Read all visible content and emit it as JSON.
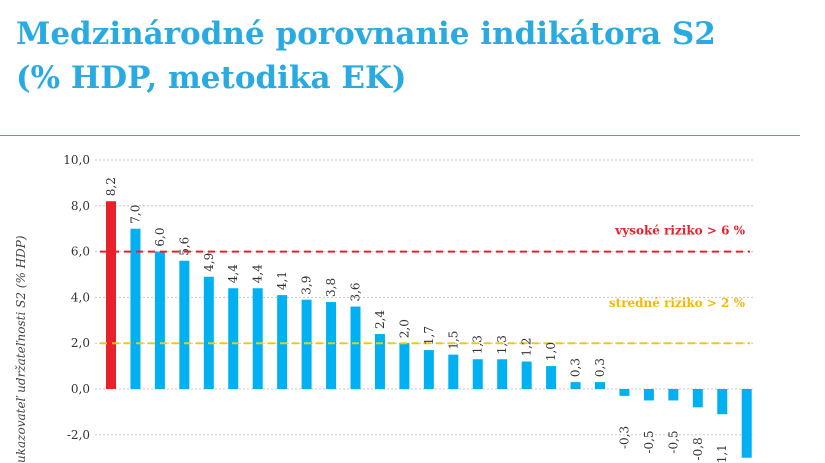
{
  "slide": {
    "title_line1": "Medzinárodné porovnanie indikátora S2",
    "title_line2": "(% HDP, metodika EK)"
  },
  "chart_data": {
    "type": "bar",
    "title": "Medzinárodné porovnanie indikátora S2 (% HDP, metodika EK)",
    "ylabel": "ukazovateľ udržateľnosti S2 (% HDP)",
    "xlabel": "",
    "ylim": [
      -3.0,
      10.0
    ],
    "yticks": [
      "10,0",
      "8,0",
      "6,0",
      "4,0",
      "2,0",
      "0,0",
      "-2,0"
    ],
    "ytick_values": [
      10,
      8,
      6,
      4,
      2,
      0,
      -2
    ],
    "grid": true,
    "values": [
      8.2,
      7.0,
      6.0,
      5.6,
      4.9,
      4.4,
      4.4,
      4.1,
      3.9,
      3.8,
      3.6,
      2.4,
      2.0,
      1.7,
      1.5,
      1.3,
      1.3,
      1.2,
      1.0,
      0.3,
      0.3,
      -0.3,
      -0.5,
      -0.5,
      -0.8,
      -1.1,
      -3.0
    ],
    "labels": [
      "8,2",
      "7,0",
      "6,0",
      "5,6",
      "4,9",
      "4,4",
      "4,4",
      "4,1",
      "3,9",
      "3,8",
      "3,6",
      "2,4",
      "2,0",
      "1,7",
      "1,5",
      "1,3",
      "1,3",
      "1,2",
      "1,0",
      "0,3",
      "0,3",
      "-0,3",
      "-0,5",
      "-0,5",
      "-0,8",
      "-1,1",
      ""
    ],
    "highlight_index": 0,
    "colors": {
      "bar": "#00b0f0",
      "highlight": "#e8202a",
      "high_line": "#e8202a",
      "medium_line": "#f5c518"
    },
    "thresholds": [
      {
        "value": 6,
        "label": "vysoké riziko > 6 %",
        "kind": "high"
      },
      {
        "value": 2,
        "label": "stredné riziko > 2 %",
        "kind": "medium"
      }
    ]
  }
}
